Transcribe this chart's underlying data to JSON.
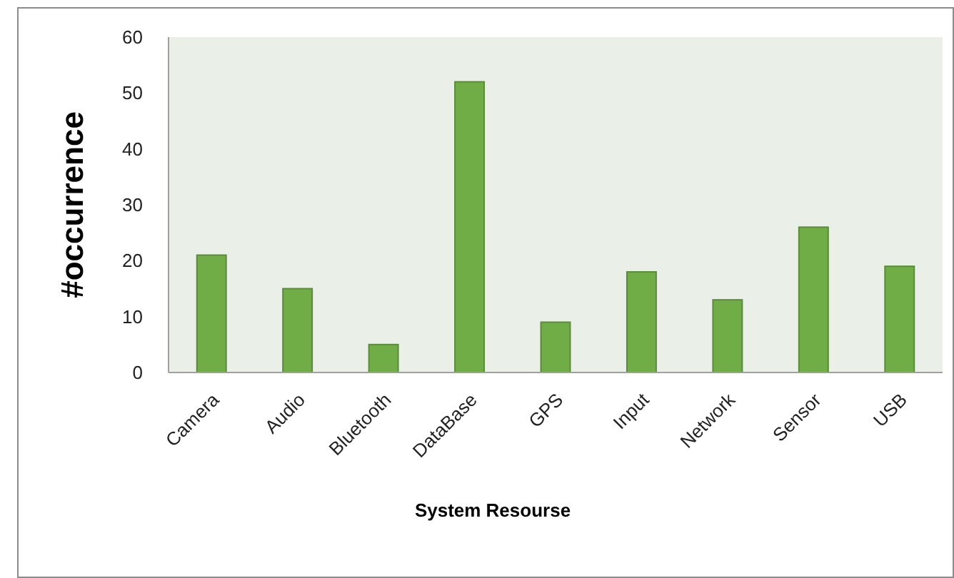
{
  "chart_data": {
    "type": "bar",
    "xlabel": "System Resourse",
    "ylabel": "#occurrence",
    "categories": [
      "Camera",
      "Audio",
      "Bluetooth",
      "DataBase",
      "GPS",
      "Input",
      "Network",
      "Sensor",
      "USB"
    ],
    "values": [
      21,
      15,
      5,
      52,
      9,
      18,
      13,
      26,
      19
    ],
    "color": "#70ad47",
    "ylim": [
      0,
      60
    ],
    "yticks": [
      0,
      10,
      20,
      30,
      40,
      50,
      60
    ]
  }
}
